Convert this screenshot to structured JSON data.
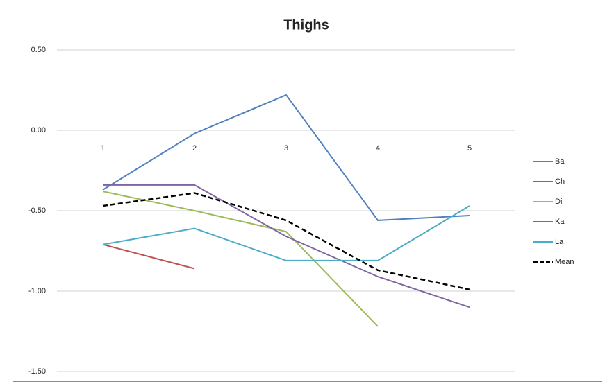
{
  "chart_data": {
    "type": "line",
    "title": "Thighs",
    "categories": [
      "1",
      "2",
      "3",
      "4",
      "5"
    ],
    "series": [
      {
        "name": "Ba",
        "color": "#4f81bd",
        "values": [
          -0.37,
          -0.02,
          0.22,
          -0.56,
          -0.53
        ]
      },
      {
        "name": "Ch",
        "color": "#c0504d",
        "values": [
          -0.71,
          -0.86,
          null,
          null,
          null
        ]
      },
      {
        "name": "Di",
        "color": "#9bbb59",
        "values": [
          -0.38,
          -0.5,
          -0.63,
          -1.22,
          null
        ]
      },
      {
        "name": "Ka",
        "color": "#8064a2",
        "values": [
          -0.34,
          -0.34,
          -0.66,
          -0.91,
          -1.1
        ]
      },
      {
        "name": "La",
        "color": "#4bacc6",
        "values": [
          -0.71,
          -0.61,
          -0.81,
          -0.81,
          -0.47
        ]
      },
      {
        "name": "Mean",
        "color": "#000000",
        "line_style": "dashed",
        "values": [
          -0.47,
          -0.39,
          -0.56,
          -0.87,
          -0.99
        ]
      }
    ],
    "ylim": [
      -1.5,
      0.5
    ],
    "yticks": [
      {
        "value": -1.5,
        "label": "-1.50"
      },
      {
        "value": -1,
        "label": "-1.00"
      },
      {
        "value": -0.5,
        "label": "-0.50"
      },
      {
        "value": 0,
        "label": "0.00"
      },
      {
        "value": 0.5,
        "label": "0.50"
      }
    ],
    "grid": true,
    "legend": "right"
  }
}
